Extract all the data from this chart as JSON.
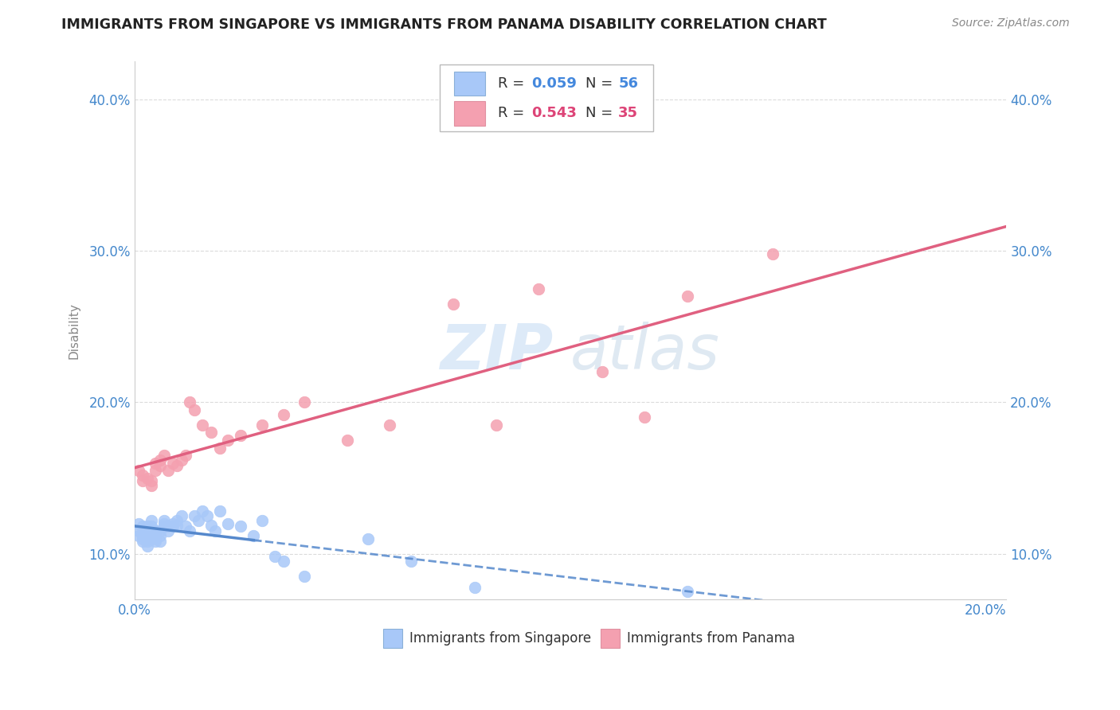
{
  "title": "IMMIGRANTS FROM SINGAPORE VS IMMIGRANTS FROM PANAMA DISABILITY CORRELATION CHART",
  "source": "Source: ZipAtlas.com",
  "ylabel": "Disability",
  "xlim": [
    0.0,
    0.205
  ],
  "ylim": [
    0.07,
    0.425
  ],
  "yticks": [
    0.1,
    0.2,
    0.3,
    0.4
  ],
  "ytick_labels": [
    "10.0%",
    "20.0%",
    "30.0%",
    "40.0%"
  ],
  "xticks": [
    0.0,
    0.05,
    0.1,
    0.15,
    0.2
  ],
  "xtick_labels": [
    "0.0%",
    "",
    "",
    "",
    "20.0%"
  ],
  "singapore_color": "#a8c8f8",
  "panama_color": "#f4a0b0",
  "sg_trend_color": "#5588cc",
  "pa_trend_color": "#e06080",
  "grid_color": "#cccccc",
  "sg_x": [
    0.001,
    0.001,
    0.001,
    0.002,
    0.002,
    0.002,
    0.002,
    0.002,
    0.003,
    0.003,
    0.003,
    0.003,
    0.003,
    0.003,
    0.004,
    0.004,
    0.004,
    0.004,
    0.005,
    0.005,
    0.005,
    0.005,
    0.005,
    0.006,
    0.006,
    0.006,
    0.007,
    0.007,
    0.007,
    0.008,
    0.008,
    0.009,
    0.009,
    0.01,
    0.01,
    0.011,
    0.012,
    0.013,
    0.014,
    0.015,
    0.016,
    0.017,
    0.018,
    0.019,
    0.02,
    0.022,
    0.025,
    0.028,
    0.03,
    0.033,
    0.035,
    0.04,
    0.055,
    0.065,
    0.08,
    0.13
  ],
  "sg_y": [
    0.12,
    0.115,
    0.112,
    0.118,
    0.113,
    0.11,
    0.108,
    0.112,
    0.118,
    0.115,
    0.112,
    0.108,
    0.105,
    0.11,
    0.122,
    0.118,
    0.115,
    0.112,
    0.115,
    0.112,
    0.11,
    0.108,
    0.115,
    0.112,
    0.108,
    0.115,
    0.12,
    0.118,
    0.122,
    0.118,
    0.115,
    0.12,
    0.118,
    0.119,
    0.122,
    0.125,
    0.118,
    0.115,
    0.125,
    0.122,
    0.128,
    0.125,
    0.119,
    0.115,
    0.128,
    0.12,
    0.118,
    0.112,
    0.122,
    0.098,
    0.095,
    0.085,
    0.11,
    0.095,
    0.078,
    0.075
  ],
  "pa_x": [
    0.001,
    0.002,
    0.002,
    0.003,
    0.004,
    0.004,
    0.005,
    0.005,
    0.006,
    0.006,
    0.007,
    0.008,
    0.009,
    0.01,
    0.011,
    0.012,
    0.013,
    0.014,
    0.016,
    0.018,
    0.02,
    0.022,
    0.025,
    0.03,
    0.035,
    0.04,
    0.05,
    0.06,
    0.075,
    0.085,
    0.095,
    0.11,
    0.12,
    0.13,
    0.15
  ],
  "pa_y": [
    0.155,
    0.148,
    0.152,
    0.15,
    0.145,
    0.148,
    0.155,
    0.16,
    0.158,
    0.162,
    0.165,
    0.155,
    0.16,
    0.158,
    0.162,
    0.165,
    0.2,
    0.195,
    0.185,
    0.18,
    0.17,
    0.175,
    0.178,
    0.185,
    0.192,
    0.2,
    0.175,
    0.185,
    0.265,
    0.185,
    0.275,
    0.22,
    0.19,
    0.27,
    0.298
  ],
  "sg_trend_x0": 0.0,
  "sg_trend_x1": 0.205,
  "pa_trend_x0": 0.0,
  "pa_trend_x1": 0.205
}
